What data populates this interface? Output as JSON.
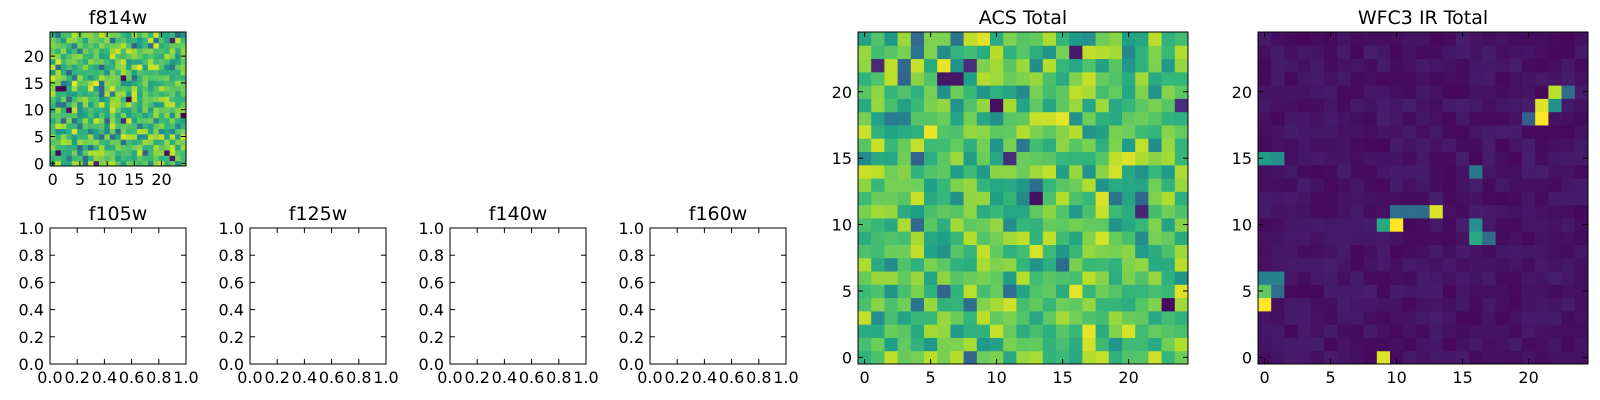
{
  "chart_data": [
    {
      "type": "heatmap",
      "title": "f814w",
      "xticks": [
        "0",
        "5",
        "10",
        "15",
        "20"
      ],
      "yticks": [
        "0",
        "5",
        "10",
        "15",
        "20"
      ],
      "xlim": [
        -0.5,
        24.5
      ],
      "ylim": [
        -0.5,
        24.5
      ],
      "grid_size": [
        25,
        25
      ],
      "colormap": "viridis",
      "colormap_stops": [
        "#440154",
        "#3b528b",
        "#21908d",
        "#5dc963",
        "#fde725"
      ],
      "values_note": "Per-pixel values are not printed; pattern is noisy, mostly green/yellow"
    },
    {
      "type": "heatmap",
      "title": "ACS Total",
      "xticks": [
        "0",
        "5",
        "10",
        "15",
        "20"
      ],
      "yticks": [
        "0",
        "5",
        "10",
        "15",
        "20"
      ],
      "xlim": [
        -0.5,
        24.5
      ],
      "ylim": [
        -0.5,
        24.5
      ],
      "grid_size": [
        25,
        25
      ],
      "colormap": "viridis"
    },
    {
      "type": "heatmap",
      "title": "WFC3 IR Total",
      "xticks": [
        "0",
        "5",
        "10",
        "15",
        "20"
      ],
      "yticks": [
        "0",
        "5",
        "10",
        "15",
        "20"
      ],
      "xlim": [
        -0.5,
        24.5
      ],
      "ylim": [
        -0.5,
        24.5
      ],
      "grid_size": [
        25,
        25
      ],
      "colormap": "viridis",
      "bright_cells": [
        {
          "x": 0,
          "y": 4,
          "v": 1.0
        },
        {
          "x": 0,
          "y": 5,
          "v": 0.75
        },
        {
          "x": 0,
          "y": 6,
          "v": 0.45
        },
        {
          "x": 1,
          "y": 5,
          "v": 0.35
        },
        {
          "x": 1,
          "y": 6,
          "v": 0.45
        },
        {
          "x": 0,
          "y": 15,
          "v": 0.55
        },
        {
          "x": 1,
          "y": 15,
          "v": 0.5
        },
        {
          "x": 9,
          "y": 0,
          "v": 0.95
        },
        {
          "x": 9,
          "y": 10,
          "v": 0.6
        },
        {
          "x": 10,
          "y": 10,
          "v": 1.0
        },
        {
          "x": 10,
          "y": 11,
          "v": 0.35
        },
        {
          "x": 11,
          "y": 11,
          "v": 0.35
        },
        {
          "x": 12,
          "y": 11,
          "v": 0.35
        },
        {
          "x": 13,
          "y": 11,
          "v": 0.95
        },
        {
          "x": 16,
          "y": 9,
          "v": 0.6
        },
        {
          "x": 16,
          "y": 10,
          "v": 0.5
        },
        {
          "x": 17,
          "y": 9,
          "v": 0.35
        },
        {
          "x": 16,
          "y": 14,
          "v": 0.4
        },
        {
          "x": 21,
          "y": 18,
          "v": 1.0
        },
        {
          "x": 21,
          "y": 19,
          "v": 0.95
        },
        {
          "x": 22,
          "y": 20,
          "v": 0.9
        },
        {
          "x": 22,
          "y": 19,
          "v": 0.5
        },
        {
          "x": 23,
          "y": 20,
          "v": 0.35
        },
        {
          "x": 20,
          "y": 18,
          "v": 0.3
        }
      ]
    },
    {
      "type": "empty",
      "title": "f105w",
      "xticks": [
        "0.0",
        "0.2",
        "0.4",
        "0.6",
        "0.8",
        "1.0"
      ],
      "yticks": [
        "0.0",
        "0.2",
        "0.4",
        "0.6",
        "0.8",
        "1.0"
      ],
      "xlim": [
        0,
        1
      ],
      "ylim": [
        0,
        1
      ]
    },
    {
      "type": "empty",
      "title": "f125w",
      "xticks": [
        "0.0",
        "0.2",
        "0.4",
        "0.6",
        "0.8",
        "1.0"
      ],
      "yticks": [
        "0.0",
        "0.2",
        "0.4",
        "0.6",
        "0.8",
        "1.0"
      ],
      "xlim": [
        0,
        1
      ],
      "ylim": [
        0,
        1
      ]
    },
    {
      "type": "empty",
      "title": "f140w",
      "xticks": [
        "0.0",
        "0.2",
        "0.4",
        "0.6",
        "0.8",
        "1.0"
      ],
      "yticks": [
        "0.0",
        "0.2",
        "0.4",
        "0.6",
        "0.8",
        "1.0"
      ],
      "xlim": [
        0,
        1
      ],
      "ylim": [
        0,
        1
      ]
    },
    {
      "type": "empty",
      "title": "f160w",
      "xticks": [
        "0.0",
        "0.2",
        "0.4",
        "0.6",
        "0.8",
        "1.0"
      ],
      "yticks": [
        "0.0",
        "0.2",
        "0.4",
        "0.6",
        "0.8",
        "1.0"
      ],
      "xlim": [
        0,
        1
      ],
      "ylim": [
        0,
        1
      ]
    }
  ]
}
